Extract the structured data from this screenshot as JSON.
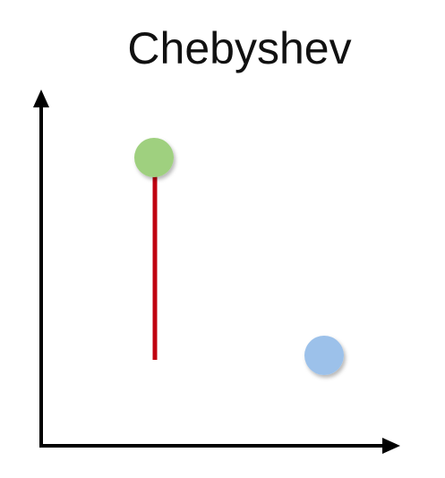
{
  "title": "Chebyshev",
  "colors": {
    "axis": "#000000",
    "point_a": "#9fd07f",
    "point_b": "#9cc1ea",
    "distance_line": "#c0000f"
  },
  "diagram": {
    "points": [
      {
        "name": "point-a",
        "color_key": "point_a"
      },
      {
        "name": "point-b",
        "color_key": "point_b"
      }
    ],
    "distance_segment": "vertical"
  }
}
